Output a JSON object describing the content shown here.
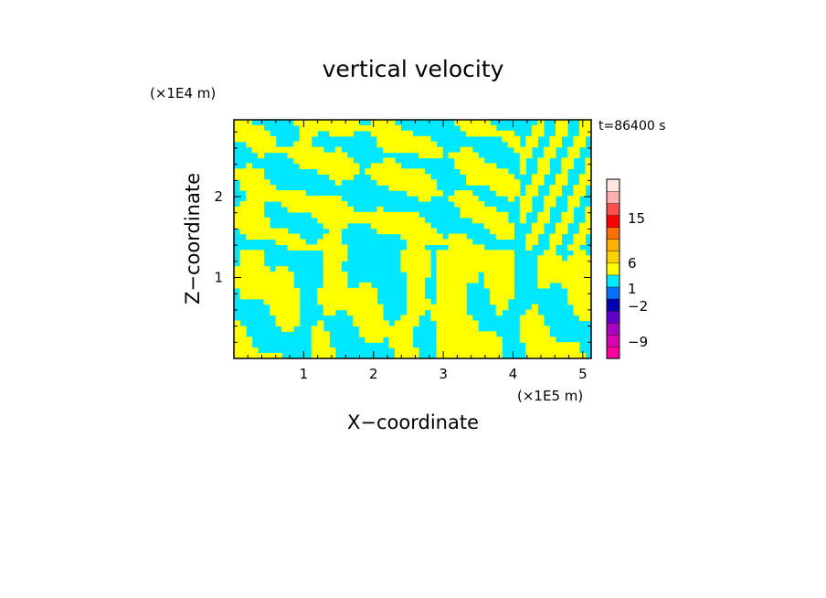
{
  "chart_data": {
    "type": "heatmap",
    "title": "vertical velocity",
    "xlabel": "X−coordinate",
    "ylabel": "Z−coordinate",
    "x_unit": "(×1E5 m)",
    "y_unit": "(×1E4 m)",
    "time_label": "t=86400 s",
    "xlim": [
      0,
      5.12
    ],
    "ylim": [
      0,
      2.95
    ],
    "x_ticks": [
      1,
      2,
      3,
      4,
      5
    ],
    "y_ticks": [
      1,
      2
    ],
    "x_tick_labels": [
      "1",
      "2",
      "3",
      "4",
      "5"
    ],
    "y_tick_labels": [
      "1",
      "2"
    ],
    "field_colors": {
      "positive": "#ffff00",
      "negative": "#00e8ff"
    },
    "colorbar": {
      "levels_bottom_to_top": [
        {
          "color": "#ff00a0"
        },
        {
          "color": "#d800b0"
        },
        {
          "color": "#a800c0"
        },
        {
          "color": "#6000c8"
        },
        {
          "color": "#0000b0"
        },
        {
          "color": "#0070ff"
        },
        {
          "color": "#00e8ff"
        },
        {
          "color": "#ffff00"
        },
        {
          "color": "#ffd200"
        },
        {
          "color": "#ffb000"
        },
        {
          "color": "#ff7000"
        },
        {
          "color": "#ff0000"
        },
        {
          "color": "#ff5050"
        },
        {
          "color": "#ffb0b0"
        },
        {
          "color": "#ffe8e0"
        }
      ],
      "tick_labels": [
        "15",
        "6",
        "1",
        "−2",
        "−9"
      ]
    }
  }
}
